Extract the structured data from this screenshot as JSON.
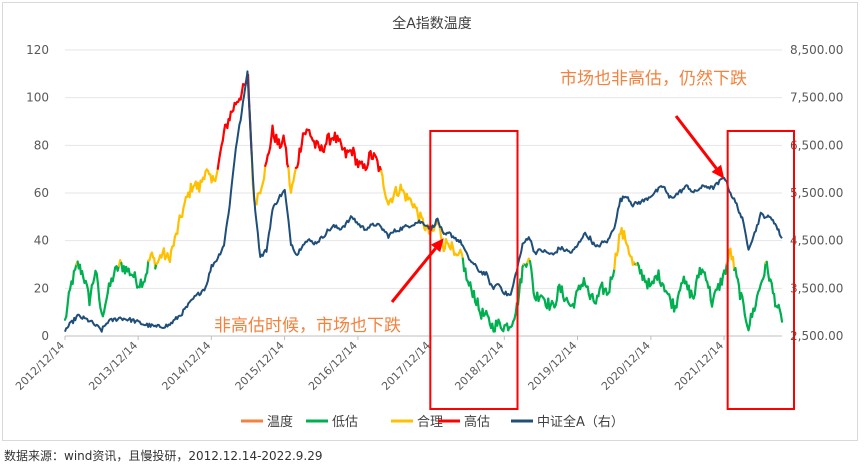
{
  "chart_data": {
    "type": "line",
    "title": "全A指数温度",
    "y_left": {
      "ylim": [
        0,
        120
      ],
      "ticks": [
        "0",
        "20",
        "40",
        "60",
        "80",
        "100",
        "120"
      ]
    },
    "y_right": {
      "ylim": [
        2500,
        8500
      ],
      "ticks": [
        "2,500.00",
        "3,500.00",
        "4,500.00",
        "5,500.00",
        "6,500.00",
        "7,500.00",
        "8,500.00"
      ]
    },
    "x_ticks": [
      "2012/12/14",
      "2013/12/14",
      "2014/12/14",
      "2015/12/14",
      "2016/12/14",
      "2017/12/14",
      "2018/12/14",
      "2019/12/14",
      "2020/12/14",
      "2021/12/14"
    ],
    "x_range": [
      "2012/12/14",
      "2022/09/29"
    ],
    "series": [
      {
        "name": "温度",
        "color": "#f4813c",
        "axis": "left",
        "points": [
          [
            "2012/12/14",
            6
          ],
          [
            "2013/01/15",
            22
          ],
          [
            "2013/02/15",
            30
          ],
          [
            "2013/03/15",
            26
          ],
          [
            "2013/04/15",
            15
          ],
          [
            "2013/05/15",
            28
          ],
          [
            "2013/06/15",
            8
          ],
          [
            "2013/07/15",
            18
          ],
          [
            "2013/08/15",
            26
          ],
          [
            "2013/09/15",
            30
          ],
          [
            "2013/10/15",
            28
          ],
          [
            "2013/11/15",
            26
          ],
          [
            "2013/12/15",
            22
          ],
          [
            "2014/01/15",
            24
          ],
          [
            "2014/02/15",
            34
          ],
          [
            "2014/03/15",
            30
          ],
          [
            "2014/04/15",
            35
          ],
          [
            "2014/05/15",
            32
          ],
          [
            "2014/06/15",
            40
          ],
          [
            "2014/07/15",
            50
          ],
          [
            "2014/08/15",
            58
          ],
          [
            "2014/09/15",
            64
          ],
          [
            "2014/10/15",
            62
          ],
          [
            "2014/11/15",
            70
          ],
          [
            "2014/12/15",
            64
          ],
          [
            "2015/01/15",
            70
          ],
          [
            "2015/02/15",
            85
          ],
          [
            "2015/03/15",
            92
          ],
          [
            "2015/04/15",
            98
          ],
          [
            "2015/05/15",
            102
          ],
          [
            "2015/06/15",
            108
          ],
          [
            "2015/07/15",
            55
          ],
          [
            "2015/08/15",
            62
          ],
          [
            "2015/09/15",
            72
          ],
          [
            "2015/10/15",
            86
          ],
          [
            "2015/11/15",
            80
          ],
          [
            "2015/12/15",
            82
          ],
          [
            "2016/01/15",
            60
          ],
          [
            "2016/02/15",
            72
          ],
          [
            "2016/03/15",
            85
          ],
          [
            "2016/04/15",
            86
          ],
          [
            "2016/05/15",
            80
          ],
          [
            "2016/06/15",
            78
          ],
          [
            "2016/07/15",
            82
          ],
          [
            "2016/08/15",
            84
          ],
          [
            "2016/09/15",
            80
          ],
          [
            "2016/10/15",
            76
          ],
          [
            "2016/11/15",
            78
          ],
          [
            "2016/12/15",
            72
          ],
          [
            "2017/01/15",
            70
          ],
          [
            "2017/02/15",
            76
          ],
          [
            "2017/03/15",
            74
          ],
          [
            "2017/04/15",
            66
          ],
          [
            "2017/05/15",
            56
          ],
          [
            "2017/06/15",
            60
          ],
          [
            "2017/07/15",
            62
          ],
          [
            "2017/08/15",
            58
          ],
          [
            "2017/09/15",
            56
          ],
          [
            "2017/10/15",
            50
          ],
          [
            "2017/11/15",
            46
          ],
          [
            "2017/12/15",
            42
          ],
          [
            "2018/01/15",
            48
          ],
          [
            "2018/02/15",
            38
          ],
          [
            "2018/03/15",
            40
          ],
          [
            "2018/04/15",
            32
          ],
          [
            "2018/05/15",
            34
          ],
          [
            "2018/06/15",
            22
          ],
          [
            "2018/07/15",
            18
          ],
          [
            "2018/08/15",
            10
          ],
          [
            "2018/09/15",
            8
          ],
          [
            "2018/10/15",
            4
          ],
          [
            "2018/11/15",
            5
          ],
          [
            "2018/12/15",
            4
          ],
          [
            "2019/01/15",
            5
          ],
          [
            "2019/02/15",
            12
          ],
          [
            "2019/03/15",
            28
          ],
          [
            "2019/04/15",
            34
          ],
          [
            "2019/05/15",
            16
          ],
          [
            "2019/06/15",
            18
          ],
          [
            "2019/07/15",
            14
          ],
          [
            "2019/08/15",
            12
          ],
          [
            "2019/09/15",
            20
          ],
          [
            "2019/10/15",
            16
          ],
          [
            "2019/11/15",
            12
          ],
          [
            "2019/12/15",
            18
          ],
          [
            "2020/01/15",
            24
          ],
          [
            "2020/02/15",
            16
          ],
          [
            "2020/03/15",
            14
          ],
          [
            "2020/04/15",
            20
          ],
          [
            "2020/05/15",
            18
          ],
          [
            "2020/06/15",
            30
          ],
          [
            "2020/07/15",
            44
          ],
          [
            "2020/08/15",
            40
          ],
          [
            "2020/09/15",
            30
          ],
          [
            "2020/10/15",
            28
          ],
          [
            "2020/11/15",
            24
          ],
          [
            "2020/12/15",
            20
          ],
          [
            "2021/01/15",
            26
          ],
          [
            "2021/02/15",
            22
          ],
          [
            "2021/03/15",
            16
          ],
          [
            "2021/04/15",
            12
          ],
          [
            "2021/05/15",
            24
          ],
          [
            "2021/06/15",
            20
          ],
          [
            "2021/07/15",
            16
          ],
          [
            "2021/08/15",
            28
          ],
          [
            "2021/09/15",
            26
          ],
          [
            "2021/10/15",
            14
          ],
          [
            "2021/11/15",
            20
          ],
          [
            "2021/12/15",
            26
          ],
          [
            "2022/01/15",
            36
          ],
          [
            "2022/02/15",
            24
          ],
          [
            "2022/03/15",
            14
          ],
          [
            "2022/04/15",
            4
          ],
          [
            "2022/05/15",
            12
          ],
          [
            "2022/06/15",
            22
          ],
          [
            "2022/07/15",
            30
          ],
          [
            "2022/08/15",
            18
          ],
          [
            "2022/09/29",
            6
          ]
        ]
      },
      {
        "name": "低估",
        "color": "#00b050",
        "axis": "left"
      },
      {
        "name": "合理",
        "color": "#ffc000",
        "axis": "left"
      },
      {
        "name": "高估",
        "color": "#ff0000",
        "axis": "left"
      },
      {
        "name": "中证全A（右）",
        "color": "#1f4e79",
        "axis": "right",
        "points": [
          [
            "2012/12/14",
            2620
          ],
          [
            "2013/02/15",
            2920
          ],
          [
            "2013/04/15",
            2820
          ],
          [
            "2013/06/15",
            2620
          ],
          [
            "2013/07/15",
            2800
          ],
          [
            "2013/09/15",
            2880
          ],
          [
            "2013/11/15",
            2830
          ],
          [
            "2014/01/15",
            2740
          ],
          [
            "2014/03/15",
            2690
          ],
          [
            "2014/05/15",
            2720
          ],
          [
            "2014/07/15",
            2950
          ],
          [
            "2014/09/15",
            3280
          ],
          [
            "2014/11/15",
            3520
          ],
          [
            "2014/12/15",
            3960
          ],
          [
            "2015/01/15",
            4140
          ],
          [
            "2015/02/15",
            4420
          ],
          [
            "2015/03/15",
            5250
          ],
          [
            "2015/04/15",
            6460
          ],
          [
            "2015/05/15",
            7200
          ],
          [
            "2015/06/12",
            8050
          ],
          [
            "2015/07/15",
            5400
          ],
          [
            "2015/08/15",
            4150
          ],
          [
            "2015/09/15",
            4300
          ],
          [
            "2015/10/15",
            5150
          ],
          [
            "2015/11/15",
            5400
          ],
          [
            "2015/12/15",
            5550
          ],
          [
            "2016/01/15",
            4450
          ],
          [
            "2016/02/15",
            4200
          ],
          [
            "2016/03/15",
            4450
          ],
          [
            "2016/04/15",
            4500
          ],
          [
            "2016/05/15",
            4450
          ],
          [
            "2016/06/15",
            4550
          ],
          [
            "2016/07/15",
            4700
          ],
          [
            "2016/08/15",
            4800
          ],
          [
            "2016/09/15",
            4750
          ],
          [
            "2016/10/15",
            4850
          ],
          [
            "2016/11/15",
            5000
          ],
          [
            "2016/12/15",
            4850
          ],
          [
            "2017/01/15",
            4750
          ],
          [
            "2017/02/15",
            4800
          ],
          [
            "2017/03/15",
            4850
          ],
          [
            "2017/04/15",
            4750
          ],
          [
            "2017/05/15",
            4600
          ],
          [
            "2017/06/15",
            4700
          ],
          [
            "2017/07/15",
            4750
          ],
          [
            "2017/08/15",
            4800
          ],
          [
            "2017/09/15",
            4850
          ],
          [
            "2017/10/15",
            4900
          ],
          [
            "2017/11/15",
            4850
          ],
          [
            "2017/12/15",
            4750
          ],
          [
            "2018/01/15",
            4950
          ],
          [
            "2018/02/15",
            4600
          ],
          [
            "2018/03/15",
            4650
          ],
          [
            "2018/04/15",
            4550
          ],
          [
            "2018/05/15",
            4450
          ],
          [
            "2018/06/15",
            4150
          ],
          [
            "2018/07/15",
            4000
          ],
          [
            "2018/08/15",
            3850
          ],
          [
            "2018/09/15",
            3800
          ],
          [
            "2018/10/15",
            3500
          ],
          [
            "2018/11/15",
            3600
          ],
          [
            "2018/12/15",
            3400
          ],
          [
            "2019/01/15",
            3350
          ],
          [
            "2019/02/15",
            3900
          ],
          [
            "2019/03/15",
            4400
          ],
          [
            "2019/04/15",
            4600
          ],
          [
            "2019/05/15",
            4250
          ],
          [
            "2019/06/15",
            4300
          ],
          [
            "2019/07/15",
            4250
          ],
          [
            "2019/08/15",
            4200
          ],
          [
            "2019/09/15",
            4350
          ],
          [
            "2019/10/15",
            4300
          ],
          [
            "2019/11/15",
            4250
          ],
          [
            "2019/12/15",
            4400
          ],
          [
            "2020/01/15",
            4650
          ],
          [
            "2020/02/15",
            4550
          ],
          [
            "2020/03/15",
            4350
          ],
          [
            "2020/04/15",
            4450
          ],
          [
            "2020/05/15",
            4500
          ],
          [
            "2020/06/15",
            4800
          ],
          [
            "2020/07/15",
            5350
          ],
          [
            "2020/08/15",
            5450
          ],
          [
            "2020/09/15",
            5250
          ],
          [
            "2020/10/15",
            5300
          ],
          [
            "2020/11/15",
            5350
          ],
          [
            "2020/12/15",
            5450
          ],
          [
            "2021/01/15",
            5550
          ],
          [
            "2021/02/15",
            5650
          ],
          [
            "2021/03/15",
            5400
          ],
          [
            "2021/04/15",
            5450
          ],
          [
            "2021/05/15",
            5550
          ],
          [
            "2021/06/15",
            5650
          ],
          [
            "2021/07/15",
            5500
          ],
          [
            "2021/08/15",
            5600
          ],
          [
            "2021/09/15",
            5650
          ],
          [
            "2021/10/15",
            5600
          ],
          [
            "2021/11/15",
            5700
          ],
          [
            "2021/12/15",
            5850
          ],
          [
            "2022/01/15",
            5500
          ],
          [
            "2022/02/15",
            5250
          ],
          [
            "2022/03/15",
            4950
          ],
          [
            "2022/04/15",
            4350
          ],
          [
            "2022/05/15",
            4650
          ],
          [
            "2022/06/15",
            5050
          ],
          [
            "2022/07/15",
            5000
          ],
          [
            "2022/08/15",
            4950
          ],
          [
            "2022/09/29",
            4550
          ]
        ]
      }
    ],
    "temperature_bands": {
      "低估": [
        0,
        30
      ],
      "合理": [
        30,
        70
      ],
      "高估": [
        70,
        120
      ]
    },
    "highlight_boxes": [
      {
        "from": "2017/12/10",
        "to": "2018/12/20"
      },
      {
        "from": "2022/01/01",
        "to": "2022/09/29"
      }
    ],
    "annotations": [
      {
        "text": "非高估时候，市场也下跌",
        "color": "#f4813c",
        "arrow_to": [
          "2018/02/15",
          4550
        ]
      },
      {
        "text": "市场也非高估，仍然下跌",
        "color": "#f4813c",
        "arrow_to": [
          "2021/12/15",
          5800
        ]
      }
    ],
    "legend": {
      "placement": "bottom",
      "items": [
        "温度",
        "低估",
        "合理",
        "高估",
        "中证全A（右）"
      ]
    },
    "grid": true
  },
  "source_text": "数据来源：wind资讯，且慢投研，2012.12.14-2022.9.29"
}
